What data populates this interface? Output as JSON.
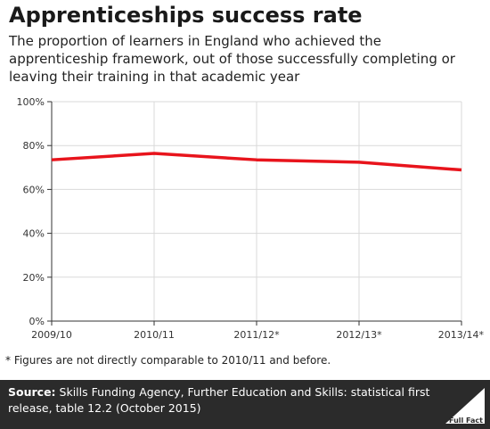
{
  "title": "Apprenticeships success rate",
  "subtitle": "The proportion of learners in England who achieved the apprenticeship framework, out of those successfully completing or leaving their training in that academic year",
  "note": "* Figures are not directly comparable to 2010/11 and before.",
  "footer": {
    "source_label": "Source:",
    "source_text": "Skills Funding Agency, Further Education and Skills: statistical first release, table 12.2 (October 2015)",
    "logo_text": "Full Fact"
  },
  "colors": {
    "line": "#e8141c",
    "grid": "#d9d9d9",
    "axis": "#333333",
    "footer_bg": "#2b2b2b"
  },
  "chart_data": {
    "type": "line",
    "categories": [
      "2009/10",
      "2010/11",
      "2011/12*",
      "2012/13*",
      "2013/14*"
    ],
    "series": [
      {
        "values": [
          73.5,
          76.4,
          73.5,
          72.4,
          68.9
        ]
      }
    ],
    "ylim": [
      0,
      100
    ],
    "yticks": [
      0,
      20,
      40,
      60,
      80,
      100
    ],
    "ytick_labels": [
      "0%",
      "20%",
      "40%",
      "60%",
      "80%",
      "100%"
    ],
    "grid": true,
    "xlabel": "",
    "ylabel": ""
  }
}
